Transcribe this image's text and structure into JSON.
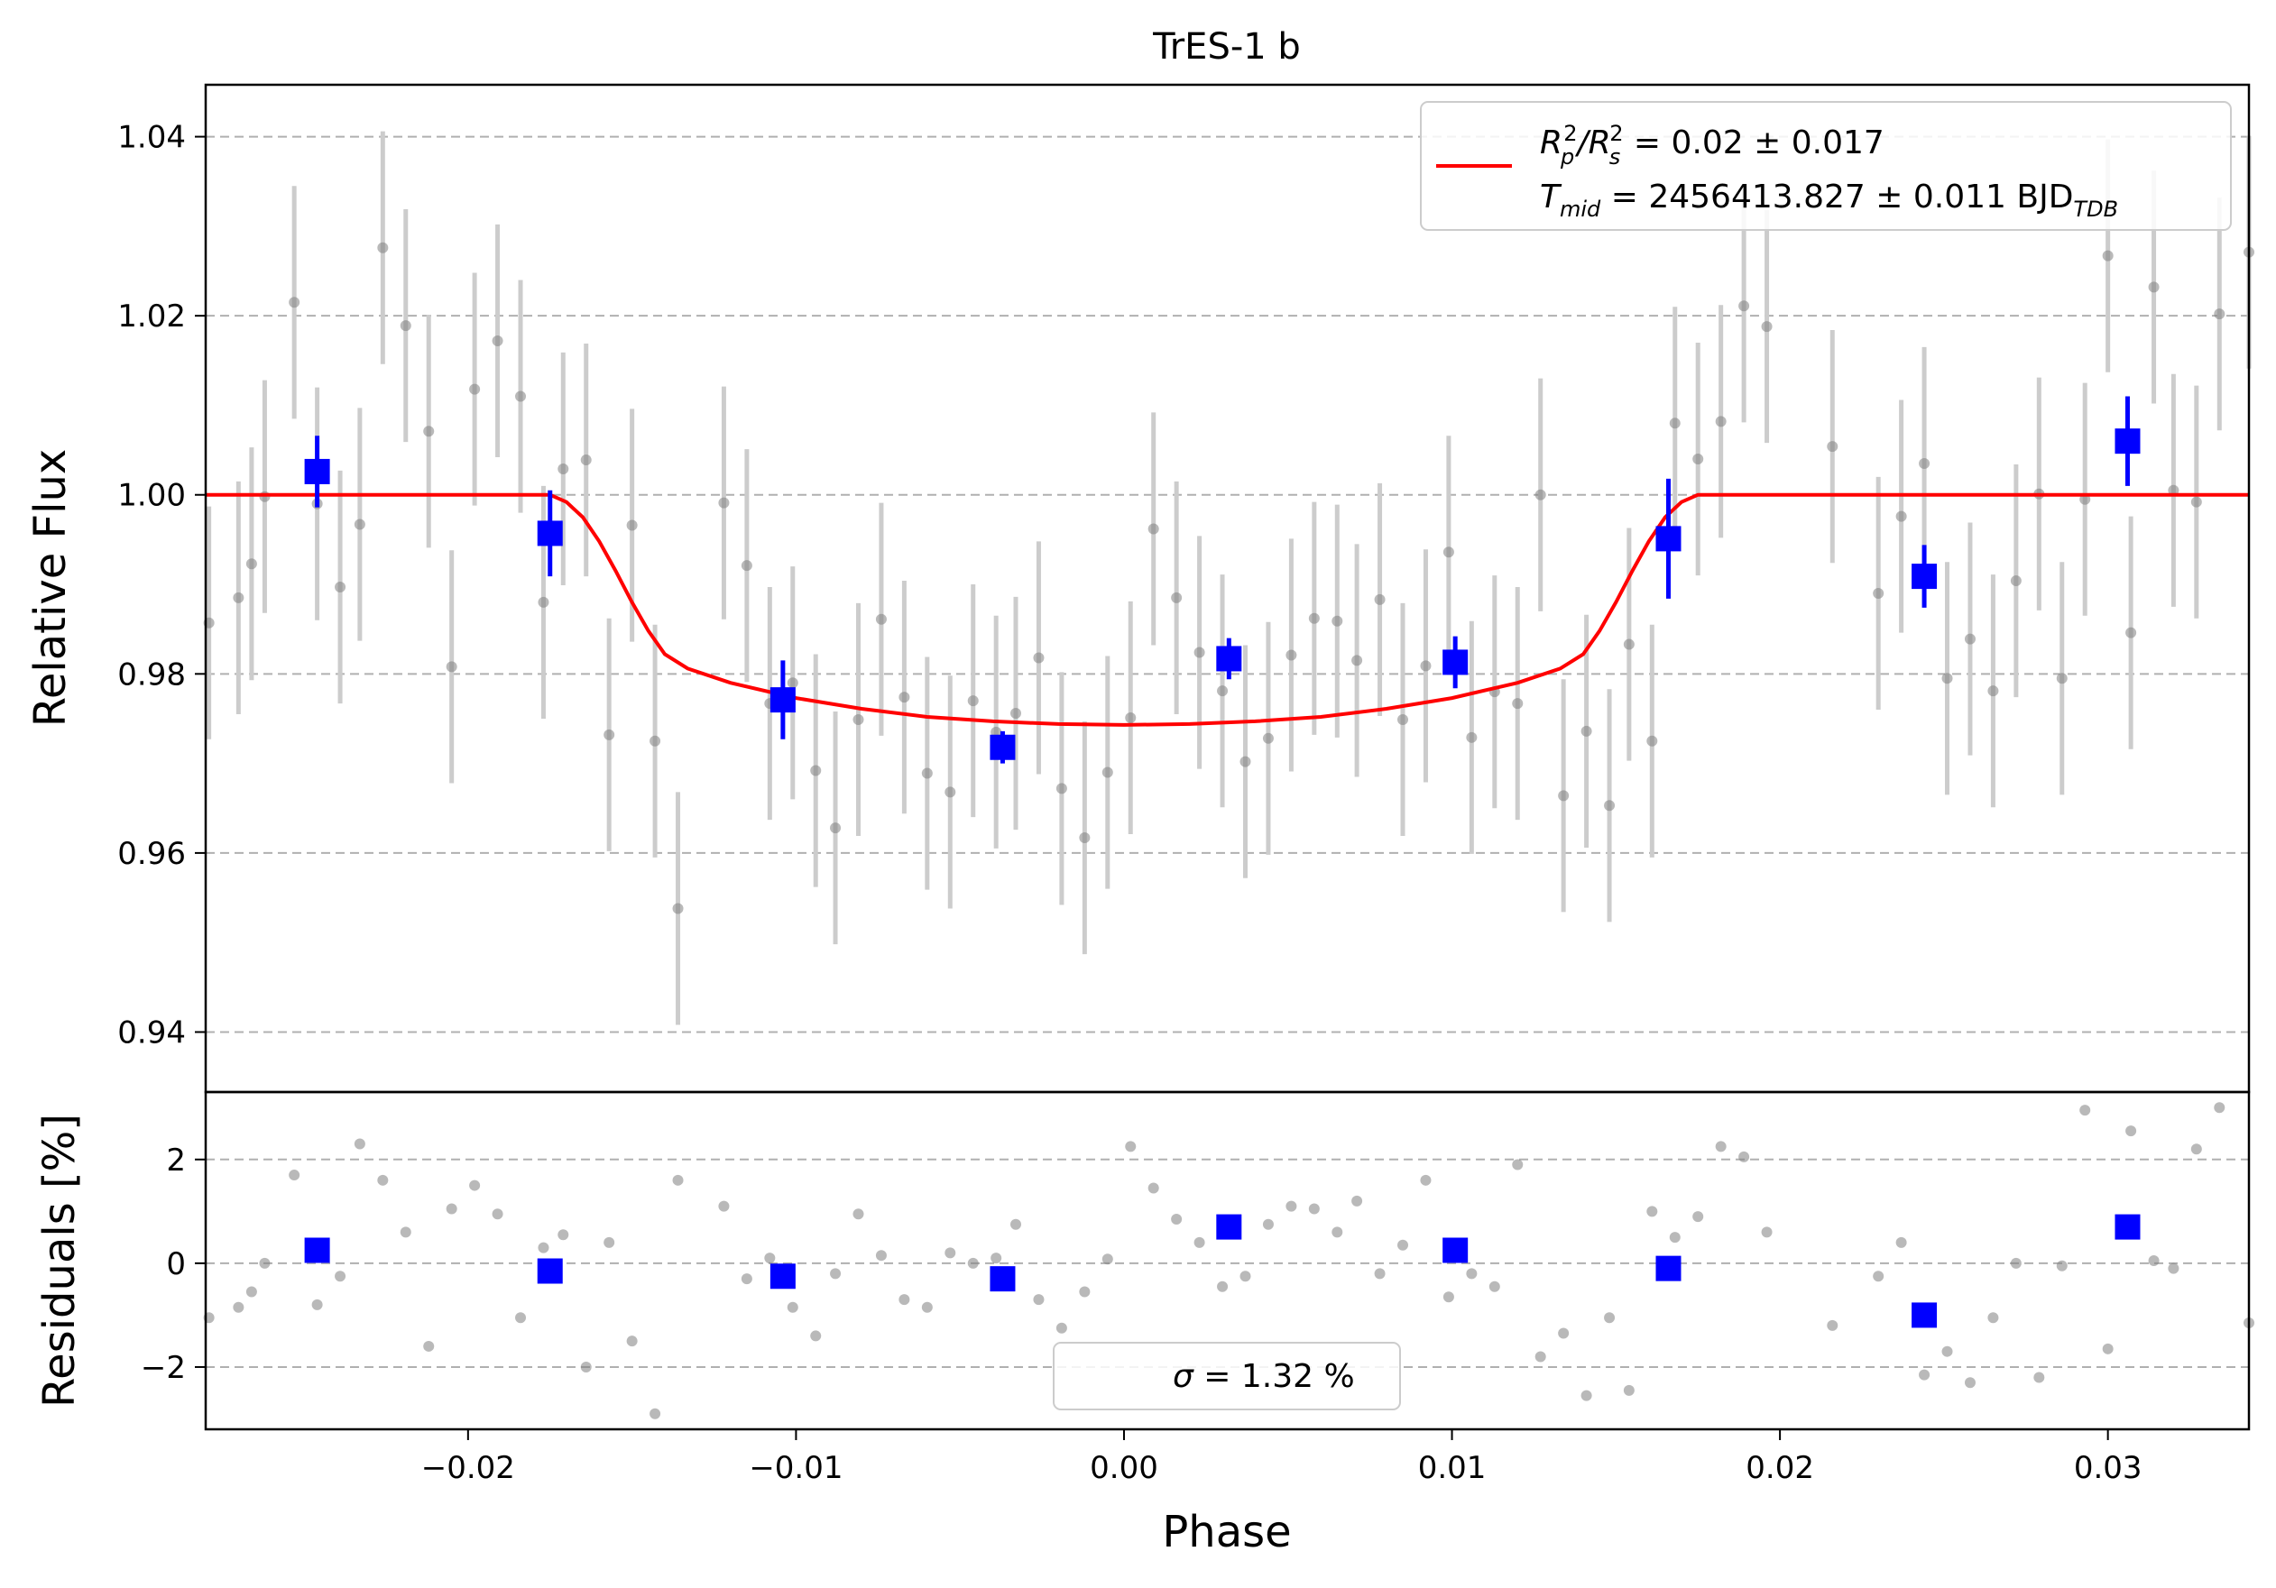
{
  "chart_data": [
    {
      "type": "scatter",
      "panel": "top",
      "title": "TrES-1 b",
      "xlabel": "",
      "ylabel": "Relative Flux",
      "xlim": [
        -0.028,
        0.0343
      ],
      "ylim": [
        0.9333,
        1.0458
      ],
      "grid": "horizontal dashed",
      "y_ticks": [
        0.94,
        0.96,
        0.98,
        1.0,
        1.02,
        1.04
      ],
      "y_tick_labels": [
        "0.94",
        "0.96",
        "0.98",
        "1.00",
        "1.02",
        "1.04"
      ],
      "legend": {
        "placement": "top-right",
        "line_label_rp": "R_p^2/R_s^2 = 0.02 ± 0.017",
        "line_label_rp_parts": {
          "r1": "R",
          "p": "p",
          "two": "2",
          "slash": "/R",
          "s": "s",
          "rest": " = 0.02 ± 0.017"
        },
        "line_label_tmid_parts": {
          "t": "T",
          "mid": "mid",
          "rest": " = 2456413.827 ± 0.011 BJD",
          "tdb": "TDB"
        }
      },
      "series": [
        {
          "name": "raw data",
          "color": "#808080",
          "x": [
            -0.0279,
            -0.027,
            -0.0266,
            -0.0262,
            -0.0253,
            -0.0246,
            -0.0239,
            -0.0233,
            -0.0226,
            -0.0219,
            -0.0212,
            -0.0205,
            -0.0198,
            -0.0191,
            -0.0184,
            -0.0177,
            -0.0171,
            -0.0164,
            -0.0157,
            -0.015,
            -0.0143,
            -0.0136,
            -0.0122,
            -0.0115,
            -0.0108,
            -0.0101,
            -0.0094,
            -0.0088,
            -0.0081,
            -0.0074,
            -0.0067,
            -0.006,
            -0.0053,
            -0.0046,
            -0.0039,
            -0.0033,
            -0.0026,
            -0.0019,
            -0.0012,
            -0.0005,
            0.0002,
            0.0009,
            0.0016,
            0.0023,
            0.003,
            0.0037,
            0.0044,
            0.0051,
            0.0058,
            0.0065,
            0.0071,
            0.0078,
            0.0085,
            0.0092,
            0.0099,
            0.0106,
            0.0113,
            0.012,
            0.0127,
            0.0134,
            0.0141,
            0.0148,
            0.0154,
            0.0161,
            0.0168,
            0.0175,
            0.0182,
            0.0189,
            0.0196,
            0.0216,
            0.023,
            0.0237,
            0.0244,
            0.0251,
            0.0258,
            0.0265,
            0.0272,
            0.0279,
            0.0286,
            0.0293,
            0.03,
            0.0307,
            0.0314,
            0.032,
            0.0327,
            0.0334,
            0.0343
          ],
          "y": [
            0.9857,
            0.9885,
            0.9923,
            0.9998,
            1.0215,
            0.999,
            0.9897,
            0.9967,
            1.0276,
            1.0189,
            1.0071,
            0.9808,
            1.0118,
            1.0172,
            1.011,
            0.988,
            1.0029,
            1.0039,
            0.9732,
            0.9966,
            0.9725,
            0.9538,
            0.9991,
            0.9921,
            0.9767,
            0.979,
            0.9692,
            0.9628,
            0.9749,
            0.9861,
            0.9774,
            0.9689,
            0.9668,
            0.977,
            0.9735,
            0.9756,
            0.9818,
            0.9672,
            0.9617,
            0.969,
            0.9751,
            0.9962,
            0.9885,
            0.9824,
            0.9781,
            0.9702,
            0.9728,
            0.9821,
            0.9862,
            0.9859,
            0.9815,
            0.9883,
            0.9749,
            0.9809,
            0.9936,
            0.9729,
            0.978,
            0.9767,
            1.0,
            0.9664,
            0.9736,
            0.9653,
            0.9833,
            0.9725,
            1.008,
            1.004,
            1.0082,
            1.0211,
            1.0188,
            1.0054,
            0.989,
            0.9976,
            1.0035,
            0.9795,
            0.9839,
            0.9781,
            0.9904,
            1.0001,
            0.9795,
            0.9995,
            1.0267,
            0.9846,
            1.0232,
            1.0005,
            0.9992,
            1.0202,
            1.0271
          ],
          "yerr": 0.013
        },
        {
          "name": "binned data",
          "color": "#0000ff",
          "x": [
            -0.0246,
            -0.0175,
            -0.0104,
            -0.0037,
            0.0032,
            0.0101,
            0.0166,
            0.0244,
            0.0306
          ],
          "y": [
            1.0026,
            0.9957,
            0.9771,
            0.9718,
            0.9817,
            0.9813,
            0.9951,
            0.9909,
            1.006
          ],
          "yerr": [
            0.004,
            0.0048,
            0.0044,
            0.0018,
            0.0023,
            0.0029,
            0.0067,
            0.0035,
            0.005
          ]
        },
        {
          "name": "transit model",
          "type": "line",
          "color": "#ff0000",
          "x": [
            -0.028,
            -0.0175,
            -0.017,
            -0.0165,
            -0.016,
            -0.0155,
            -0.015,
            -0.0145,
            -0.014,
            -0.0133,
            -0.012,
            -0.01,
            -0.008,
            -0.006,
            -0.004,
            -0.002,
            0.0,
            0.002,
            0.004,
            0.006,
            0.008,
            0.01,
            0.012,
            0.0133,
            0.014,
            0.0145,
            0.015,
            0.0155,
            0.016,
            0.0165,
            0.017,
            0.0175,
            0.0343
          ],
          "y": [
            1.0,
            1.0,
            0.9992,
            0.9975,
            0.9948,
            0.9915,
            0.988,
            0.9848,
            0.9822,
            0.9806,
            0.979,
            0.9773,
            0.9761,
            0.9752,
            0.9747,
            0.9744,
            0.9743,
            0.9744,
            0.9747,
            0.9752,
            0.9761,
            0.9773,
            0.979,
            0.9806,
            0.9822,
            0.9848,
            0.988,
            0.9915,
            0.9948,
            0.9975,
            0.9992,
            1.0,
            1.0
          ]
        }
      ]
    },
    {
      "type": "scatter",
      "panel": "bottom",
      "xlabel": "Phase",
      "ylabel": "Residuals [%]",
      "xlim": [
        -0.028,
        0.0343
      ],
      "ylim": [
        -3.2,
        3.3
      ],
      "grid": "horizontal dashed",
      "x_ticks": [
        -0.02,
        -0.01,
        0.0,
        0.01,
        0.02,
        0.03
      ],
      "x_tick_labels": [
        "−0.02",
        "−0.01",
        "0.00",
        "0.01",
        "0.02",
        "0.03"
      ],
      "y_ticks": [
        -2,
        0,
        2
      ],
      "y_tick_labels": [
        "−2",
        "0",
        "2"
      ],
      "legend": {
        "placement": "bottom-center",
        "sigma_symbol": "σ",
        "sigma_rest": " = 1.32 %"
      },
      "series": [
        {
          "name": "raw residuals",
          "color": "#808080",
          "x": [
            -0.0279,
            -0.027,
            -0.0266,
            -0.0262,
            -0.0253,
            -0.0246,
            -0.0239,
            -0.0233,
            -0.0226,
            -0.0219,
            -0.0212,
            -0.0205,
            -0.0198,
            -0.0191,
            -0.0184,
            -0.0177,
            -0.0171,
            -0.0164,
            -0.0157,
            -0.015,
            -0.0143,
            -0.0136,
            -0.0122,
            -0.0115,
            -0.0108,
            -0.0101,
            -0.0094,
            -0.0088,
            -0.0081,
            -0.0074,
            -0.0067,
            -0.006,
            -0.0053,
            -0.0046,
            -0.0039,
            -0.0033,
            -0.0026,
            -0.0019,
            -0.0012,
            -0.0005,
            0.0002,
            0.0009,
            0.0016,
            0.0023,
            0.003,
            0.0037,
            0.0044,
            0.0051,
            0.0058,
            0.0065,
            0.0071,
            0.0078,
            0.0085,
            0.0092,
            0.0099,
            0.0106,
            0.0113,
            0.012,
            0.0127,
            0.0134,
            0.0141,
            0.0148,
            0.0154,
            0.0161,
            0.0168,
            0.0175,
            0.0182,
            0.0189,
            0.0196,
            0.0216,
            0.023,
            0.0237,
            0.0244,
            0.0251,
            0.0258,
            0.0265,
            0.0272,
            0.0279,
            0.0286,
            0.0293,
            0.03,
            0.0307,
            0.0314,
            0.032,
            0.0327,
            0.0334,
            0.0343
          ],
          "y": [
            -1.05,
            -0.85,
            -0.55,
            0.0,
            1.7,
            -0.8,
            -0.25,
            2.3,
            1.6,
            0.6,
            -1.6,
            1.05,
            1.5,
            0.95,
            -1.05,
            0.3,
            0.55,
            -2.0,
            0.4,
            -1.5,
            -2.9,
            1.6,
            1.1,
            -0.3,
            0.1,
            -0.85,
            -1.4,
            -0.2,
            0.95,
            0.15,
            -0.7,
            -0.85,
            0.2,
            0.0,
            0.1,
            0.75,
            -0.7,
            -1.25,
            -0.55,
            0.08,
            2.25,
            1.45,
            0.85,
            0.4,
            -0.45,
            -0.25,
            0.75,
            1.1,
            1.05,
            0.6,
            1.2,
            -0.2,
            0.35,
            1.6,
            -0.65,
            -0.2,
            -0.45,
            1.9,
            -1.8,
            -1.35,
            -2.55,
            -1.05,
            -2.45,
            1.0,
            0.5,
            0.9,
            2.25,
            2.05,
            0.6,
            -1.2,
            -0.25,
            0.4,
            -2.15,
            -1.7,
            -2.3,
            -1.05,
            0.0,
            -2.2,
            -0.05,
            2.95,
            -1.65,
            2.55,
            0.05,
            -0.1,
            2.2,
            3.0,
            -1.15
          ]
        },
        {
          "name": "binned residuals",
          "color": "#0000ff",
          "x": [
            -0.0246,
            -0.0175,
            -0.0104,
            -0.0037,
            0.0032,
            0.0101,
            0.0166,
            0.0244,
            0.0306
          ],
          "y": [
            0.25,
            -0.15,
            -0.25,
            -0.3,
            0.7,
            0.25,
            -0.1,
            -1.0,
            0.7
          ]
        }
      ]
    }
  ],
  "colors": {
    "model": "#ff0000",
    "binned": "#0000ff",
    "raw": "#808080",
    "errbar": "#cccccc",
    "grid": "#b0b0b0"
  }
}
